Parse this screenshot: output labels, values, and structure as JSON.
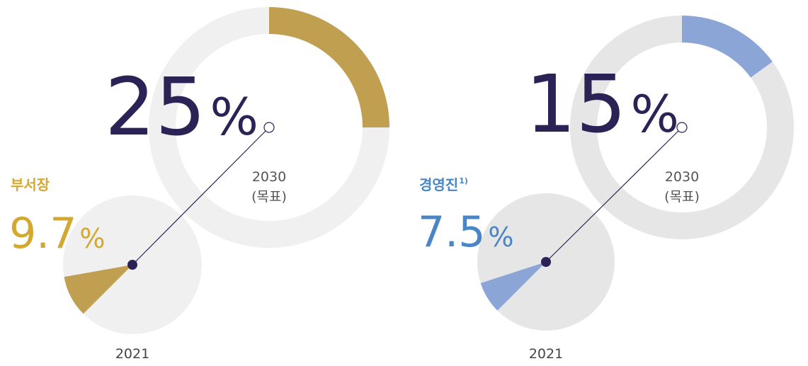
{
  "chart_data": [
    {
      "type": "progress",
      "name": "부서장",
      "unit": "%",
      "color": "#c09f51",
      "track_color": "#f0f0f0",
      "label_color": "#d4a830",
      "current": {
        "year": "2021",
        "value": 9.7
      },
      "target": {
        "year": "2030",
        "label": "(목표)",
        "value": 25
      }
    },
    {
      "type": "progress",
      "name": "경영진",
      "note": "1)",
      "unit": "%",
      "color": "#8aa5d6",
      "track_color": "#e6e6e6",
      "label_color": "#4a86c5",
      "current": {
        "year": "2021",
        "value": 7.5
      },
      "target": {
        "year": "2030",
        "label": "(목표)",
        "value": 15
      }
    }
  ]
}
